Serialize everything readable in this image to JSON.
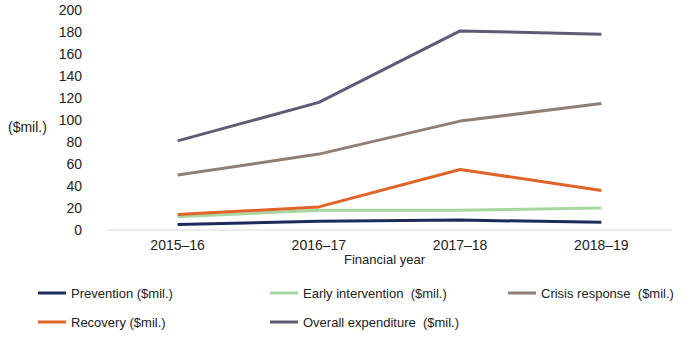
{
  "chart_data": {
    "type": "line",
    "x_label": "Financial year",
    "y_label": "($mil.)",
    "categories": [
      "2015–16",
      "2016–17",
      "2017–18",
      "2018–19"
    ],
    "series": [
      {
        "name": "Prevention ($mil.)",
        "color": "#1f2a5c",
        "values": [
          5,
          8,
          9,
          7
        ]
      },
      {
        "name": "Early intervention  ($mil.)",
        "color": "#a8d5a0",
        "values": [
          12,
          18,
          18,
          20
        ]
      },
      {
        "name": "Crisis response  ($mil.)",
        "color": "#8f7f74",
        "values": [
          50,
          69,
          99,
          115
        ]
      },
      {
        "name": "Recovery ($mil.)",
        "color": "#e0642a",
        "values": [
          14,
          21,
          55,
          36
        ]
      },
      {
        "name": "Overall expenditure  ($mil.)",
        "color": "#5f5b73",
        "values": [
          81,
          116,
          181,
          178
        ]
      }
    ],
    "ylim": [
      0,
      200
    ],
    "yticks": [
      0,
      20,
      40,
      60,
      80,
      100,
      120,
      140,
      160,
      180,
      200
    ],
    "grid": false,
    "legend": "bottom"
  }
}
